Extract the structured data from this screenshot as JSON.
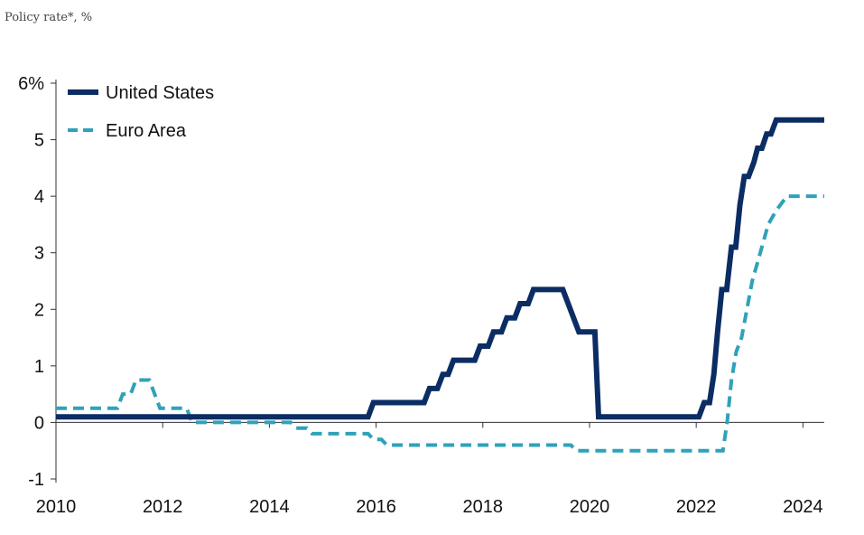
{
  "subtitle": "Policy rate*, %",
  "chart_data": {
    "type": "line",
    "title": "",
    "xlabel": "",
    "ylabel": "Policy rate*, %",
    "xlim": [
      2010,
      2024.4
    ],
    "ylim": [
      -1,
      6
    ],
    "x_ticks": [
      {
        "value": 2010,
        "label": "2010"
      },
      {
        "value": 2012,
        "label": "2012"
      },
      {
        "value": 2014,
        "label": "2014"
      },
      {
        "value": 2016,
        "label": "2016"
      },
      {
        "value": 2018,
        "label": "2018"
      },
      {
        "value": 2020,
        "label": "2020"
      },
      {
        "value": 2022,
        "label": "2022"
      },
      {
        "value": 2024,
        "label": "2024"
      }
    ],
    "y_ticks": [
      {
        "value": 6,
        "label": "6%"
      },
      {
        "value": 5,
        "label": "5"
      },
      {
        "value": 4,
        "label": "4"
      },
      {
        "value": 3,
        "label": "3"
      },
      {
        "value": 2,
        "label": "2"
      },
      {
        "value": 1,
        "label": "1"
      },
      {
        "value": 0,
        "label": "0"
      },
      {
        "value": -1,
        "label": "-1"
      }
    ],
    "legend_position": "top-left",
    "series": [
      {
        "name": "United States",
        "color": "#0b2d63",
        "style": "solid",
        "points": [
          [
            2010.0,
            0.1
          ],
          [
            2015.85,
            0.1
          ],
          [
            2015.95,
            0.35
          ],
          [
            2016.9,
            0.35
          ],
          [
            2017.0,
            0.6
          ],
          [
            2017.15,
            0.6
          ],
          [
            2017.25,
            0.85
          ],
          [
            2017.35,
            0.85
          ],
          [
            2017.45,
            1.1
          ],
          [
            2017.85,
            1.1
          ],
          [
            2017.95,
            1.35
          ],
          [
            2018.1,
            1.35
          ],
          [
            2018.2,
            1.6
          ],
          [
            2018.35,
            1.6
          ],
          [
            2018.45,
            1.85
          ],
          [
            2018.6,
            1.85
          ],
          [
            2018.7,
            2.1
          ],
          [
            2018.85,
            2.1
          ],
          [
            2018.95,
            2.35
          ],
          [
            2019.5,
            2.35
          ],
          [
            2019.8,
            1.6
          ],
          [
            2020.1,
            1.6
          ],
          [
            2020.17,
            0.1
          ],
          [
            2022.05,
            0.1
          ],
          [
            2022.15,
            0.35
          ],
          [
            2022.25,
            0.35
          ],
          [
            2022.33,
            0.85
          ],
          [
            2022.4,
            1.6
          ],
          [
            2022.48,
            2.35
          ],
          [
            2022.57,
            2.35
          ],
          [
            2022.66,
            3.1
          ],
          [
            2022.74,
            3.1
          ],
          [
            2022.82,
            3.85
          ],
          [
            2022.9,
            4.35
          ],
          [
            2022.98,
            4.35
          ],
          [
            2023.08,
            4.6
          ],
          [
            2023.15,
            4.85
          ],
          [
            2023.23,
            4.85
          ],
          [
            2023.32,
            5.1
          ],
          [
            2023.4,
            5.1
          ],
          [
            2023.5,
            5.35
          ],
          [
            2024.4,
            5.35
          ]
        ]
      },
      {
        "name": "Euro Area",
        "color": "#2fa2b9",
        "style": "dashed",
        "points": [
          [
            2010.0,
            0.25
          ],
          [
            2011.15,
            0.25
          ],
          [
            2011.25,
            0.5
          ],
          [
            2011.4,
            0.5
          ],
          [
            2011.5,
            0.75
          ],
          [
            2011.75,
            0.75
          ],
          [
            2011.85,
            0.5
          ],
          [
            2011.95,
            0.25
          ],
          [
            2012.45,
            0.25
          ],
          [
            2012.55,
            0.0
          ],
          [
            2013.0,
            0.0
          ],
          [
            2014.4,
            0.0
          ],
          [
            2014.5,
            -0.1
          ],
          [
            2014.7,
            -0.1
          ],
          [
            2014.8,
            -0.2
          ],
          [
            2015.85,
            -0.2
          ],
          [
            2015.95,
            -0.3
          ],
          [
            2016.1,
            -0.3
          ],
          [
            2016.2,
            -0.4
          ],
          [
            2019.65,
            -0.4
          ],
          [
            2019.75,
            -0.5
          ],
          [
            2022.5,
            -0.5
          ],
          [
            2022.58,
            0.0
          ],
          [
            2022.66,
            0.75
          ],
          [
            2022.75,
            1.25
          ],
          [
            2022.85,
            1.5
          ],
          [
            2022.95,
            2.0
          ],
          [
            2023.05,
            2.5
          ],
          [
            2023.2,
            3.0
          ],
          [
            2023.35,
            3.5
          ],
          [
            2023.5,
            3.75
          ],
          [
            2023.7,
            4.0
          ],
          [
            2024.4,
            4.0
          ]
        ]
      }
    ]
  }
}
